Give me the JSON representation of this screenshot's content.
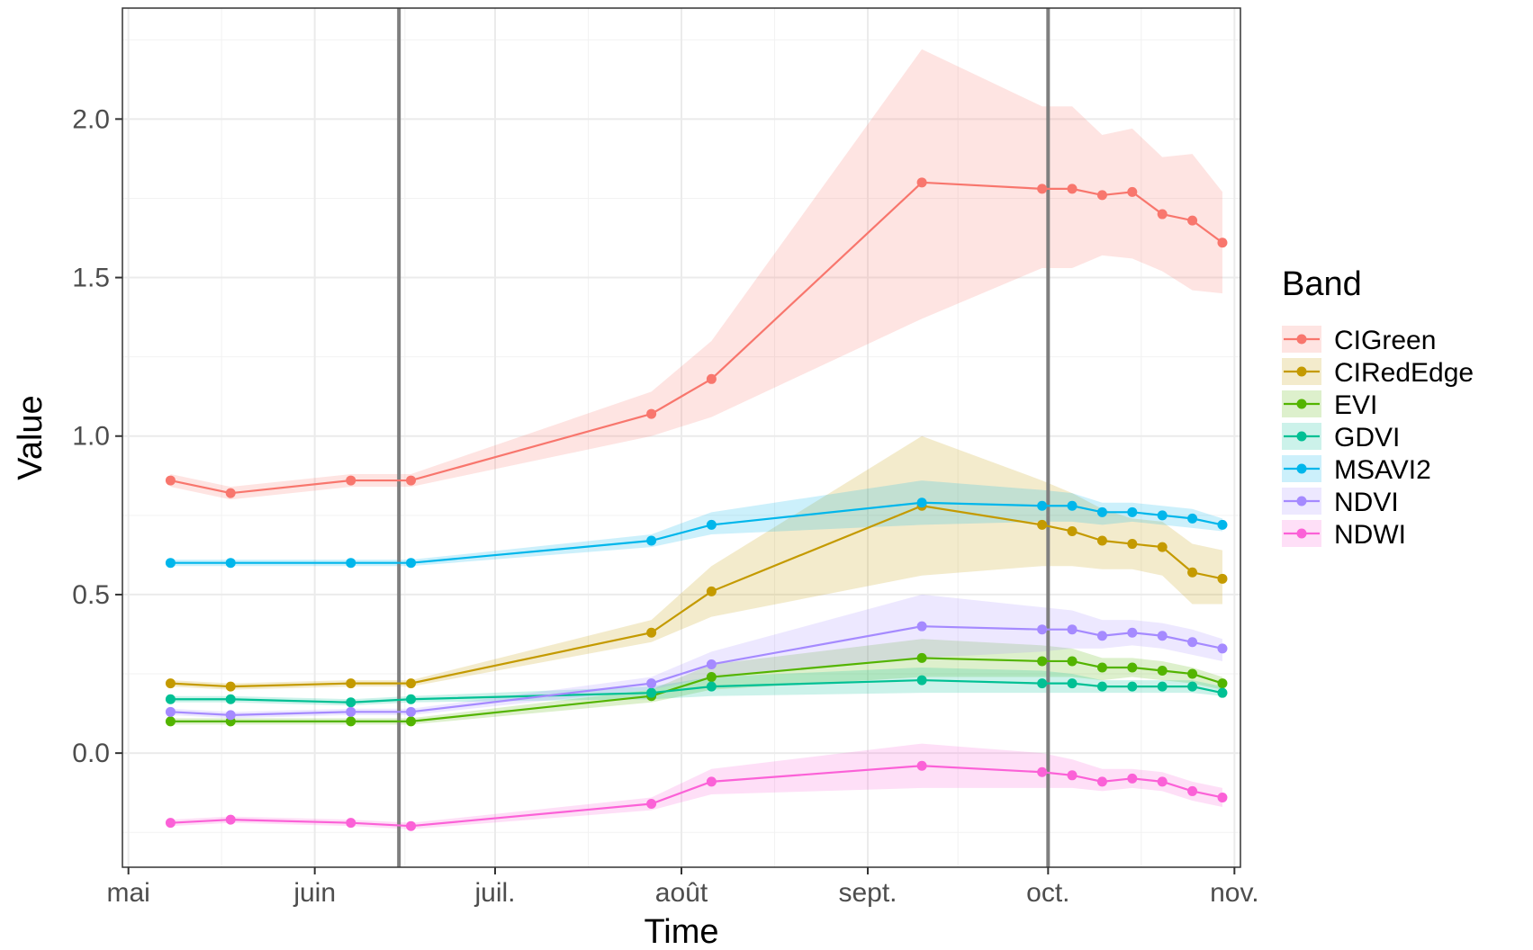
{
  "chart_data": {
    "type": "line",
    "xlabel": "Time",
    "ylabel": "Value",
    "legend_title": "Band",
    "legend_position": "right",
    "grid": true,
    "ribbons": true,
    "x_type": "date",
    "xlim": [
      "2019-04-30",
      "2019-11-02"
    ],
    "ylim": [
      -0.36,
      2.35
    ],
    "x_ticks": [
      {
        "date": "2019-05-01",
        "label": "mai"
      },
      {
        "date": "2019-06-01",
        "label": "juin"
      },
      {
        "date": "2019-07-01",
        "label": "juil."
      },
      {
        "date": "2019-08-01",
        "label": "août"
      },
      {
        "date": "2019-09-01",
        "label": "sept."
      },
      {
        "date": "2019-10-01",
        "label": "oct."
      },
      {
        "date": "2019-11-01",
        "label": "nov."
      }
    ],
    "y_ticks": [
      {
        "value": 0.0,
        "label": "0.0"
      },
      {
        "value": 0.5,
        "label": "0.5"
      },
      {
        "value": 1.0,
        "label": "1.0"
      },
      {
        "value": 1.5,
        "label": "1.5"
      },
      {
        "value": 2.0,
        "label": "2.0"
      }
    ],
    "vlines": [
      "2019-06-15",
      "2019-10-01"
    ],
    "x": [
      "2019-05-08",
      "2019-05-18",
      "2019-06-07",
      "2019-06-17",
      "2019-07-27",
      "2019-08-06",
      "2019-09-10",
      "2019-09-30",
      "2019-10-05",
      "2019-10-10",
      "2019-10-15",
      "2019-10-20",
      "2019-10-25",
      "2019-10-30"
    ],
    "series": [
      {
        "name": "CIGreen",
        "color": "#F8766D",
        "values": [
          0.86,
          0.82,
          0.86,
          0.86,
          1.07,
          1.18,
          1.8,
          1.78,
          1.78,
          1.76,
          1.77,
          1.7,
          1.68,
          1.61
        ],
        "lower": [
          0.84,
          0.8,
          0.84,
          0.84,
          1.0,
          1.06,
          1.37,
          1.53,
          1.53,
          1.57,
          1.56,
          1.52,
          1.46,
          1.45
        ],
        "upper": [
          0.88,
          0.84,
          0.88,
          0.88,
          1.14,
          1.3,
          2.22,
          2.04,
          2.04,
          1.95,
          1.97,
          1.88,
          1.89,
          1.77
        ]
      },
      {
        "name": "CIRedEdge",
        "color": "#C49A00",
        "values": [
          0.22,
          0.21,
          0.22,
          0.22,
          0.38,
          0.51,
          0.78,
          0.72,
          0.7,
          0.67,
          0.66,
          0.65,
          0.57,
          0.55
        ],
        "lower": [
          0.21,
          0.2,
          0.21,
          0.21,
          0.35,
          0.43,
          0.56,
          0.59,
          0.59,
          0.58,
          0.58,
          0.56,
          0.47,
          0.47
        ],
        "upper": [
          0.23,
          0.22,
          0.23,
          0.23,
          0.42,
          0.59,
          1.0,
          0.86,
          0.82,
          0.77,
          0.74,
          0.73,
          0.66,
          0.64
        ]
      },
      {
        "name": "EVI",
        "color": "#53B400",
        "values": [
          0.1,
          0.1,
          0.1,
          0.1,
          0.18,
          0.24,
          0.3,
          0.29,
          0.29,
          0.27,
          0.27,
          0.26,
          0.25,
          0.22
        ],
        "lower": [
          0.09,
          0.09,
          0.09,
          0.09,
          0.16,
          0.2,
          0.24,
          0.24,
          0.24,
          0.23,
          0.24,
          0.23,
          0.22,
          0.2
        ],
        "upper": [
          0.11,
          0.11,
          0.11,
          0.11,
          0.2,
          0.28,
          0.36,
          0.34,
          0.33,
          0.3,
          0.3,
          0.29,
          0.27,
          0.24
        ]
      },
      {
        "name": "GDVI",
        "color": "#00C094",
        "values": [
          0.17,
          0.17,
          0.16,
          0.17,
          0.19,
          0.21,
          0.23,
          0.22,
          0.22,
          0.21,
          0.21,
          0.21,
          0.21,
          0.19
        ],
        "lower": [
          0.16,
          0.16,
          0.15,
          0.16,
          0.17,
          0.18,
          0.19,
          0.19,
          0.19,
          0.19,
          0.19,
          0.19,
          0.19,
          0.18
        ],
        "upper": [
          0.18,
          0.18,
          0.17,
          0.18,
          0.21,
          0.24,
          0.27,
          0.26,
          0.25,
          0.23,
          0.23,
          0.23,
          0.23,
          0.21
        ]
      },
      {
        "name": "MSAVI2",
        "color": "#00B6EB",
        "values": [
          0.6,
          0.6,
          0.6,
          0.6,
          0.67,
          0.72,
          0.79,
          0.78,
          0.78,
          0.76,
          0.76,
          0.75,
          0.74,
          0.72
        ],
        "lower": [
          0.59,
          0.59,
          0.59,
          0.59,
          0.65,
          0.69,
          0.72,
          0.73,
          0.73,
          0.72,
          0.73,
          0.72,
          0.71,
          0.7
        ],
        "upper": [
          0.61,
          0.61,
          0.61,
          0.61,
          0.69,
          0.76,
          0.86,
          0.83,
          0.82,
          0.79,
          0.79,
          0.78,
          0.77,
          0.74
        ]
      },
      {
        "name": "NDVI",
        "color": "#A58AFF",
        "values": [
          0.13,
          0.12,
          0.13,
          0.13,
          0.22,
          0.28,
          0.4,
          0.39,
          0.39,
          0.37,
          0.38,
          0.37,
          0.35,
          0.33
        ],
        "lower": [
          0.12,
          0.11,
          0.12,
          0.12,
          0.2,
          0.24,
          0.3,
          0.32,
          0.33,
          0.33,
          0.34,
          0.33,
          0.31,
          0.29
        ],
        "upper": [
          0.14,
          0.13,
          0.14,
          0.14,
          0.24,
          0.32,
          0.5,
          0.46,
          0.45,
          0.42,
          0.42,
          0.41,
          0.39,
          0.36
        ]
      },
      {
        "name": "NDWI",
        "color": "#FB61D7",
        "values": [
          -0.22,
          -0.21,
          -0.22,
          -0.23,
          -0.16,
          -0.09,
          -0.04,
          -0.06,
          -0.07,
          -0.09,
          -0.08,
          -0.09,
          -0.12,
          -0.14
        ],
        "lower": [
          -0.23,
          -0.22,
          -0.23,
          -0.24,
          -0.18,
          -0.13,
          -0.11,
          -0.11,
          -0.11,
          -0.12,
          -0.11,
          -0.12,
          -0.15,
          -0.17
        ],
        "upper": [
          -0.21,
          -0.2,
          -0.21,
          -0.22,
          -0.14,
          -0.05,
          0.03,
          0.0,
          -0.02,
          -0.05,
          -0.05,
          -0.06,
          -0.09,
          -0.11
        ]
      }
    ]
  }
}
